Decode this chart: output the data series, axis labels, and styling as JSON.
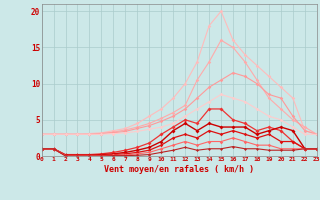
{
  "xlabel": "Vent moyen/en rafales ( km/h )",
  "background_color": "#cce8e8",
  "grid_color": "#aacccc",
  "xlim": [
    0,
    23
  ],
  "ylim": [
    0,
    21
  ],
  "xticks": [
    0,
    1,
    2,
    3,
    4,
    5,
    6,
    7,
    8,
    9,
    10,
    11,
    12,
    13,
    14,
    15,
    16,
    17,
    18,
    19,
    20,
    21,
    22,
    23
  ],
  "yticks": [
    0,
    5,
    10,
    15,
    20
  ],
  "ytick_labels": [
    "0",
    "5",
    "10",
    "15",
    "20"
  ],
  "label_color": "#cc0000",
  "lines": [
    {
      "x": [
        0,
        1,
        2,
        3,
        4,
        5,
        6,
        7,
        8,
        9,
        10,
        11,
        12,
        13,
        14,
        15,
        16,
        17,
        18,
        19,
        20,
        21,
        22,
        23
      ],
      "y": [
        3.0,
        3.0,
        3.0,
        3.0,
        3.1,
        3.2,
        3.5,
        3.8,
        4.5,
        5.5,
        6.5,
        8.0,
        10.0,
        13.0,
        18.0,
        20.0,
        16.0,
        14.0,
        12.5,
        11.0,
        9.5,
        8.0,
        3.5,
        3.0
      ],
      "color": "#ffbbbb",
      "linewidth": 0.8,
      "marker": "D",
      "markersize": 1.8
    },
    {
      "x": [
        0,
        1,
        2,
        3,
        4,
        5,
        6,
        7,
        8,
        9,
        10,
        11,
        12,
        13,
        14,
        15,
        16,
        17,
        18,
        19,
        20,
        21,
        22,
        23
      ],
      "y": [
        3.0,
        3.0,
        3.0,
        3.0,
        3.0,
        3.1,
        3.3,
        3.6,
        4.0,
        4.5,
        5.2,
        6.0,
        7.0,
        10.5,
        13.0,
        16.0,
        15.0,
        13.0,
        10.5,
        8.0,
        6.5,
        5.0,
        4.0,
        3.0
      ],
      "color": "#ffaaaa",
      "linewidth": 0.8,
      "marker": "D",
      "markersize": 1.8
    },
    {
      "x": [
        0,
        1,
        2,
        3,
        4,
        5,
        6,
        7,
        8,
        9,
        10,
        11,
        12,
        13,
        14,
        15,
        16,
        17,
        18,
        19,
        20,
        21,
        22,
        23
      ],
      "y": [
        3.0,
        3.0,
        3.0,
        3.0,
        3.0,
        3.1,
        3.2,
        3.4,
        3.8,
        4.2,
        4.8,
        5.5,
        6.5,
        8.0,
        9.5,
        10.5,
        11.5,
        11.0,
        10.0,
        8.5,
        8.0,
        5.5,
        3.5,
        3.0
      ],
      "color": "#ff9999",
      "linewidth": 0.8,
      "marker": "D",
      "markersize": 1.8
    },
    {
      "x": [
        0,
        1,
        2,
        3,
        4,
        5,
        6,
        7,
        8,
        9,
        10,
        11,
        12,
        13,
        14,
        15,
        16,
        17,
        18,
        19,
        20,
        21,
        22,
        23
      ],
      "y": [
        3.0,
        3.0,
        3.0,
        3.0,
        3.0,
        3.0,
        3.1,
        3.2,
        3.4,
        3.7,
        4.0,
        4.5,
        5.5,
        6.5,
        7.5,
        8.5,
        8.0,
        7.5,
        6.5,
        5.5,
        5.0,
        4.0,
        3.0,
        3.0
      ],
      "color": "#ffcccc",
      "linewidth": 0.8,
      "marker": "D",
      "markersize": 1.8
    },
    {
      "x": [
        0,
        1,
        2,
        3,
        4,
        5,
        6,
        7,
        8,
        9,
        10,
        11,
        12,
        13,
        14,
        15,
        16,
        17,
        18,
        19,
        20,
        21,
        22,
        23
      ],
      "y": [
        1.0,
        1.0,
        0.2,
        0.2,
        0.2,
        0.3,
        0.5,
        0.8,
        1.2,
        1.8,
        3.0,
        4.0,
        5.0,
        4.5,
        6.5,
        6.5,
        5.0,
        4.5,
        3.5,
        4.0,
        3.5,
        2.0,
        1.0,
        1.0
      ],
      "color": "#ee3333",
      "linewidth": 0.9,
      "marker": "D",
      "markersize": 2.0
    },
    {
      "x": [
        0,
        1,
        2,
        3,
        4,
        5,
        6,
        7,
        8,
        9,
        10,
        11,
        12,
        13,
        14,
        15,
        16,
        17,
        18,
        19,
        20,
        21,
        22,
        23
      ],
      "y": [
        1.0,
        1.0,
        0.1,
        0.1,
        0.1,
        0.2,
        0.3,
        0.5,
        0.8,
        1.2,
        2.0,
        3.5,
        4.5,
        3.5,
        4.5,
        4.0,
        4.0,
        4.0,
        3.0,
        3.5,
        4.0,
        3.5,
        1.0,
        1.0
      ],
      "color": "#cc0000",
      "linewidth": 1.0,
      "marker": "D",
      "markersize": 2.0
    },
    {
      "x": [
        0,
        1,
        2,
        3,
        4,
        5,
        6,
        7,
        8,
        9,
        10,
        11,
        12,
        13,
        14,
        15,
        16,
        17,
        18,
        19,
        20,
        21,
        22,
        23
      ],
      "y": [
        1.0,
        1.0,
        0.1,
        0.1,
        0.1,
        0.1,
        0.2,
        0.3,
        0.5,
        0.8,
        1.5,
        2.5,
        3.0,
        2.5,
        3.5,
        3.0,
        3.5,
        3.0,
        2.5,
        3.0,
        2.0,
        2.0,
        1.0,
        1.0
      ],
      "color": "#dd1111",
      "linewidth": 0.9,
      "marker": "D",
      "markersize": 1.8
    },
    {
      "x": [
        0,
        1,
        2,
        3,
        4,
        5,
        6,
        7,
        8,
        9,
        10,
        11,
        12,
        13,
        14,
        15,
        16,
        17,
        18,
        19,
        20,
        21,
        22,
        23
      ],
      "y": [
        1.0,
        1.0,
        0.05,
        0.05,
        0.05,
        0.05,
        0.1,
        0.15,
        0.3,
        0.5,
        1.0,
        1.5,
        2.0,
        1.5,
        2.0,
        2.0,
        2.5,
        2.0,
        1.5,
        1.5,
        1.0,
        1.0,
        1.0,
        1.0
      ],
      "color": "#ff6666",
      "linewidth": 0.8,
      "marker": "D",
      "markersize": 1.8
    },
    {
      "x": [
        0,
        1,
        2,
        3,
        4,
        5,
        6,
        7,
        8,
        9,
        10,
        11,
        12,
        13,
        14,
        15,
        16,
        17,
        18,
        19,
        20,
        21,
        22,
        23
      ],
      "y": [
        1.0,
        1.0,
        0.0,
        0.0,
        0.0,
        0.0,
        0.05,
        0.05,
        0.1,
        0.2,
        0.5,
        0.8,
        1.2,
        0.8,
        1.0,
        1.0,
        1.3,
        1.0,
        1.0,
        0.8,
        0.8,
        0.8,
        1.0,
        1.0
      ],
      "color": "#bb2222",
      "linewidth": 0.8,
      "marker": "D",
      "markersize": 1.5
    }
  ]
}
